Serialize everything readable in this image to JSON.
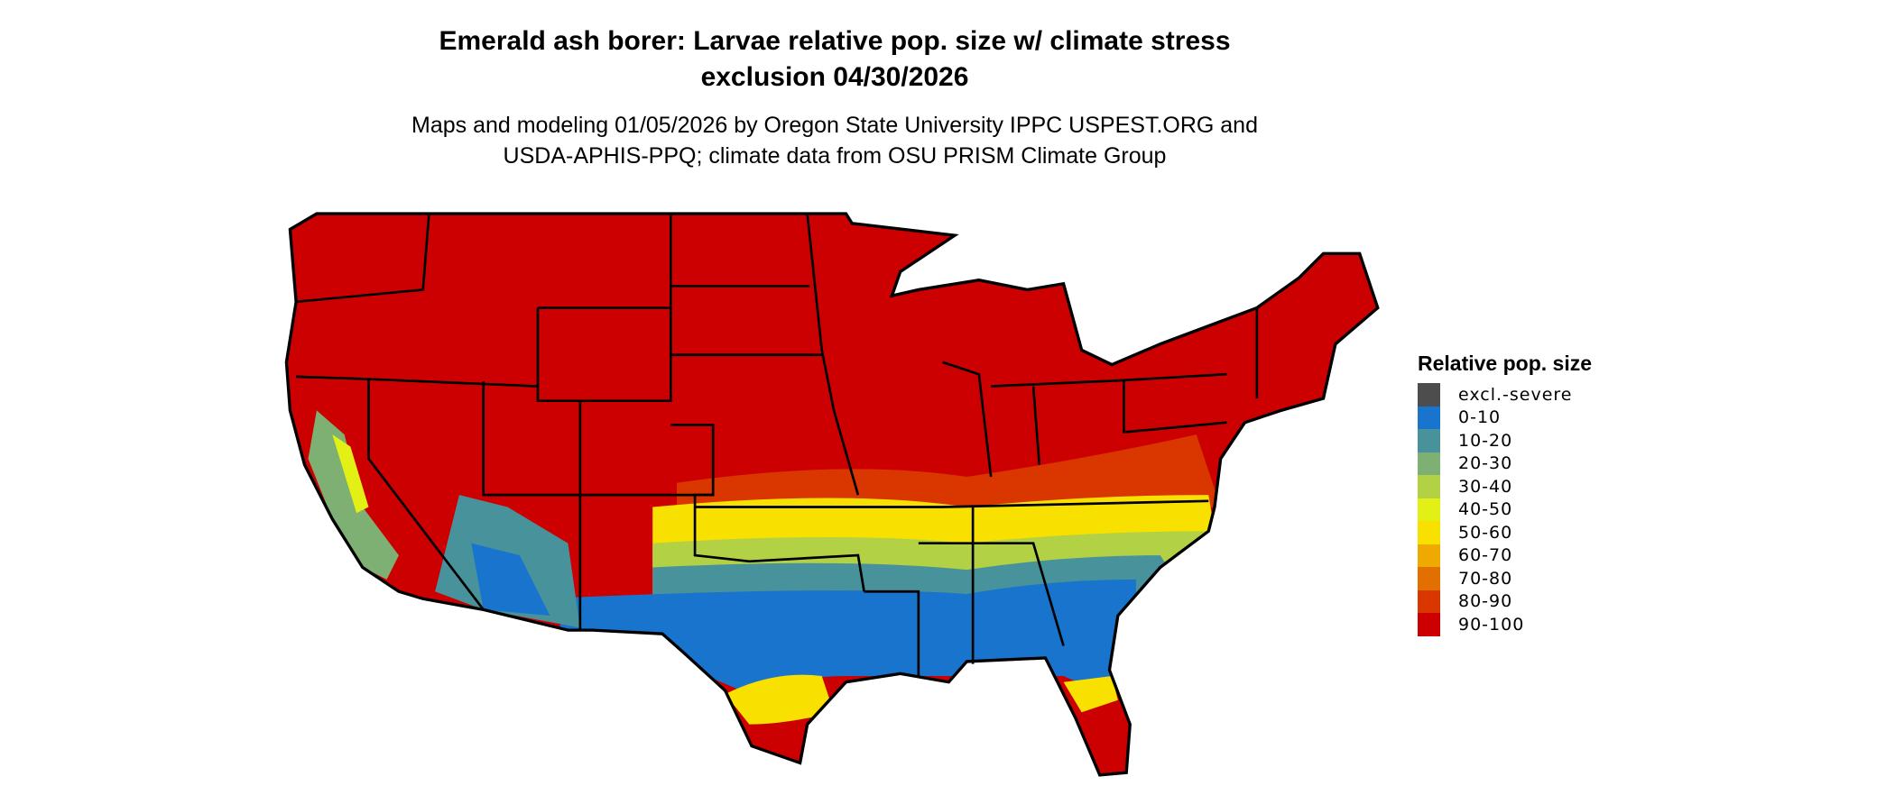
{
  "title": {
    "line1": "Emerald ash borer: Larvae relative pop. size w/ climate stress",
    "line2": "exclusion 04/30/2026"
  },
  "subtitle": {
    "line1": "Maps and modeling 01/05/2026 by Oregon State University IPPC USPEST.ORG and",
    "line2": "USDA-APHIS-PPQ; climate data from OSU PRISM Climate Group"
  },
  "legend": {
    "title": "Relative pop. size",
    "items": [
      {
        "label": "excl.-severe",
        "color": "#4d4d4d"
      },
      {
        "label": "0-10",
        "color": "#1874cd"
      },
      {
        "label": "10-20",
        "color": "#48929b"
      },
      {
        "label": "20-30",
        "color": "#7db072"
      },
      {
        "label": "30-40",
        "color": "#b2d145"
      },
      {
        "label": "40-50",
        "color": "#e3f015"
      },
      {
        "label": "50-60",
        "color": "#f8e000"
      },
      {
        "label": "60-70",
        "color": "#eeaa00"
      },
      {
        "label": "70-80",
        "color": "#e27000"
      },
      {
        "label": "80-90",
        "color": "#d93600"
      },
      {
        "label": "90-100",
        "color": "#cc0000"
      }
    ]
  },
  "map": {
    "region": "Contiguous United States",
    "state_border_color": "#000000"
  }
}
